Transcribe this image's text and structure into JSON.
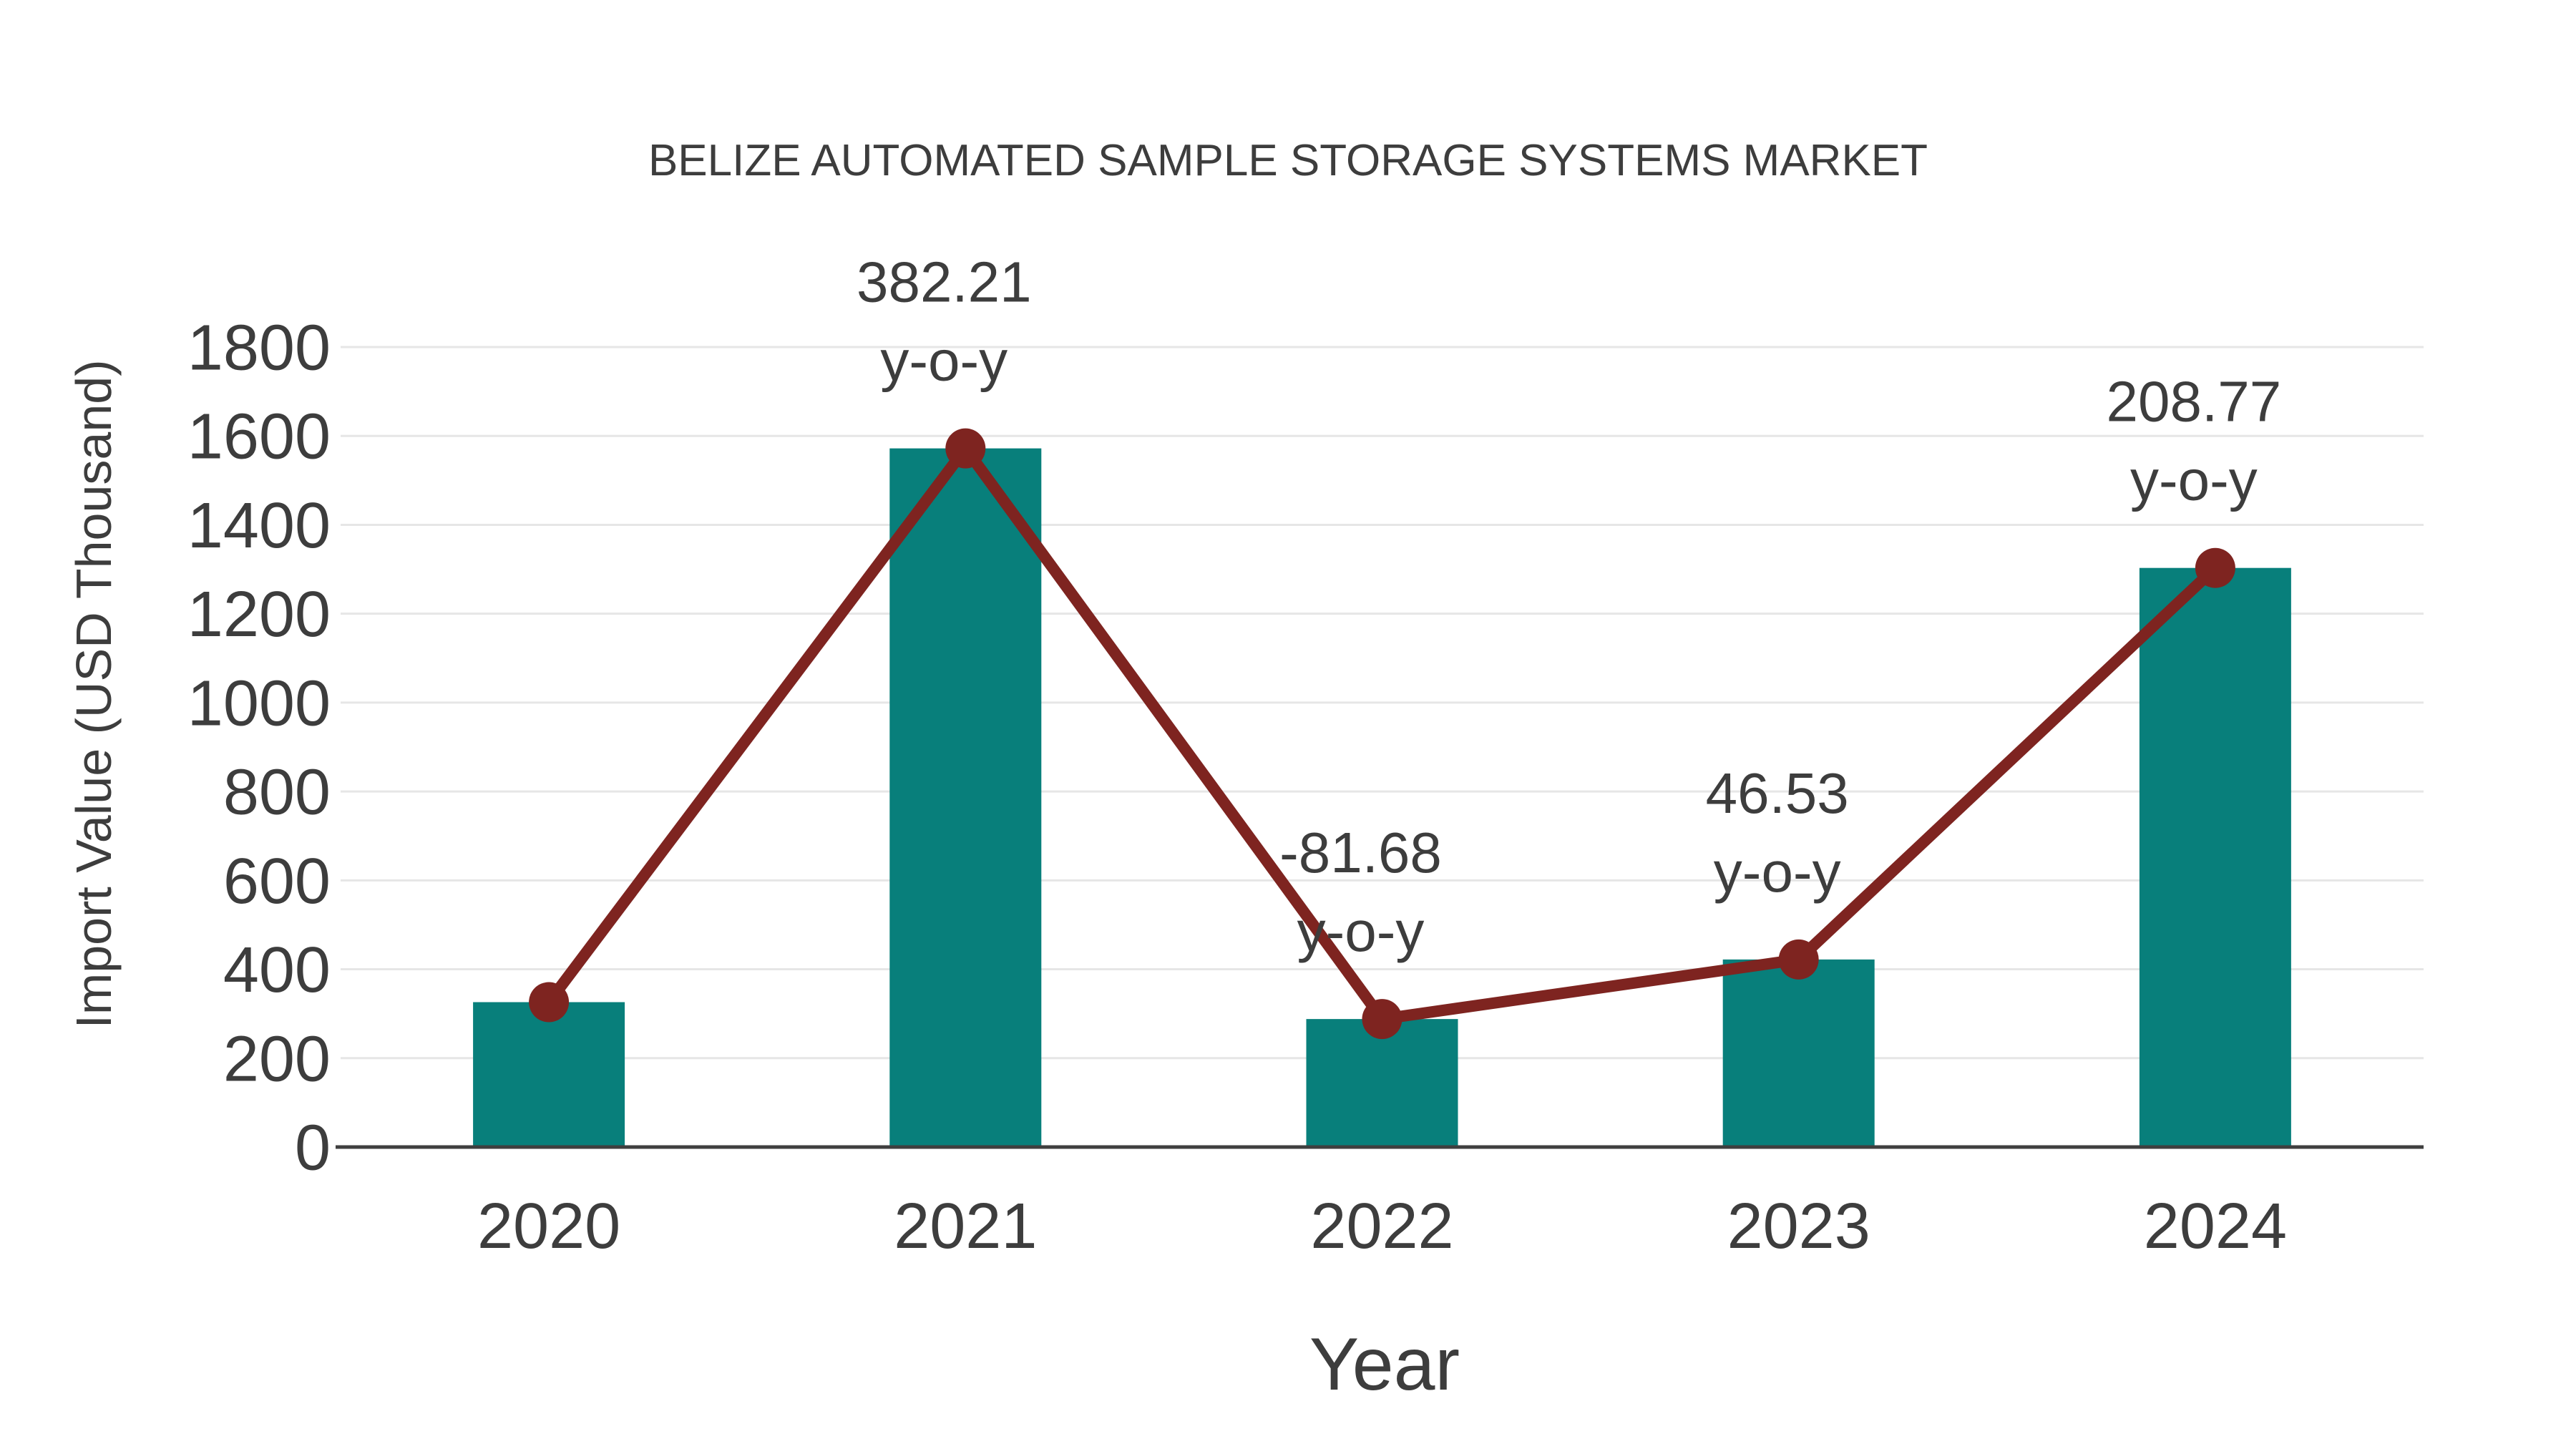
{
  "page": {
    "background": "#ffffff"
  },
  "chart_data": {
    "type": "bar",
    "title": "BELIZE AUTOMATED SAMPLE STORAGE SYSTEMS MARKET",
    "xlabel": "Year",
    "ylabel": "Import Value (USD Thousand)",
    "categories": [
      "2020",
      "2021",
      "2022",
      "2023",
      "2024"
    ],
    "series": [
      {
        "name": "Import Value (USD Thousand)",
        "type": "bar",
        "values": [
          326,
          1572,
          288,
          422,
          1303
        ],
        "color": "#087f7b"
      },
      {
        "name": "y-o-y growth (%)",
        "type": "line",
        "values": [
          326,
          1572,
          288,
          422,
          1303
        ],
        "yoy_percent": [
          null,
          382.21,
          -81.68,
          46.53,
          208.77
        ],
        "color": "#7e2420"
      }
    ],
    "point_labels": [
      null,
      "382.21",
      "-81.68",
      "46.53",
      "208.77"
    ],
    "point_label_suffix": "y-o-y",
    "ylim": [
      0,
      1800
    ],
    "ytick_step": 200,
    "yticks": [
      0,
      200,
      400,
      600,
      800,
      1000,
      1200,
      1400,
      1600,
      1800
    ],
    "grid": "horizontal",
    "legend": "none",
    "colors": {
      "text": "#3d3d3d",
      "grid": "#e6e6e6",
      "axis": "#3f3f3f",
      "bar": "#087f7b",
      "line": "#7e2420",
      "marker": "#7e2420"
    }
  }
}
